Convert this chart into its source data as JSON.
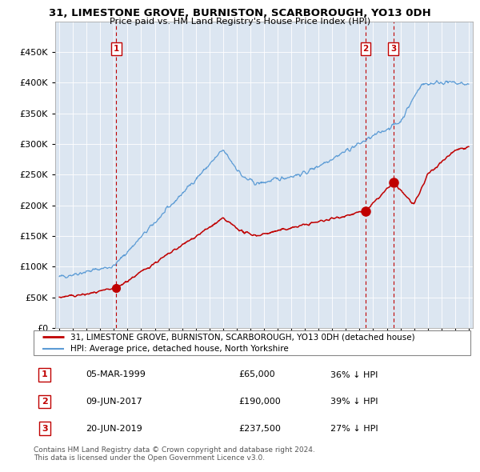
{
  "title_line1": "31, LIMESTONE GROVE, BURNISTON, SCARBOROUGH, YO13 0DH",
  "title_line2": "Price paid vs. HM Land Registry's House Price Index (HPI)",
  "legend_line1": "31, LIMESTONE GROVE, BURNISTON, SCARBOROUGH, YO13 0DH (detached house)",
  "legend_line2": "HPI: Average price, detached house, North Yorkshire",
  "hpi_color": "#5b9bd5",
  "price_color": "#c00000",
  "vline_color": "#c00000",
  "sale_dates": [
    1999.18,
    2017.44,
    2019.47
  ],
  "sale_prices": [
    65000,
    190000,
    237500
  ],
  "sale_labels": [
    "1",
    "2",
    "3"
  ],
  "sale_table": [
    {
      "num": "1",
      "date": "05-MAR-1999",
      "price": "£65,000",
      "pct": "36% ↓ HPI"
    },
    {
      "num": "2",
      "date": "09-JUN-2017",
      "price": "£190,000",
      "pct": "39% ↓ HPI"
    },
    {
      "num": "3",
      "date": "20-JUN-2019",
      "price": "£237,500",
      "pct": "27% ↓ HPI"
    }
  ],
  "footer": "Contains HM Land Registry data © Crown copyright and database right 2024.\nThis data is licensed under the Open Government Licence v3.0.",
  "ylim": [
    0,
    500000
  ],
  "yticks": [
    0,
    50000,
    100000,
    150000,
    200000,
    250000,
    300000,
    350000,
    400000,
    450000
  ],
  "xlim_start": 1994.7,
  "xlim_end": 2025.3,
  "plot_bg_color": "#dce6f1",
  "grid_color": "#ffffff"
}
